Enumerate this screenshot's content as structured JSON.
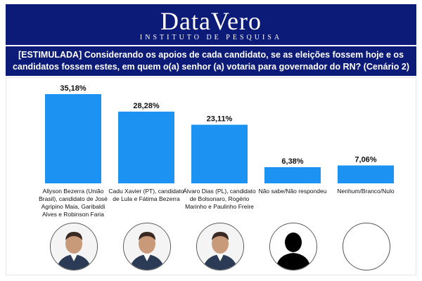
{
  "header": {
    "brand": "DataVero",
    "subtitle": "INSTITUTO DE PESQUISA",
    "question": "[ESTIMULADA] Considerando os apoios de cada candidato, se as eleições fossem hoje e os candidatos fossem estes, em quem o(a) senhor (a) votaria para governador do RN? (Cenário 2)"
  },
  "colors": {
    "banner": "#0c1a78",
    "bar": "#1c93f2"
  },
  "chart_data": {
    "type": "bar",
    "categories": [
      "Allyson Bezerra (União Brasil), candidato de José Agripino Maia, Garibaldi Alves e Robinson Faria",
      "Cadu Xavier (PT), candidato de Lula e Fátima Bezerra",
      "Álvaro Dias (PL), candidato de Bolsonaro, Rogério Marinho e Paulinho Freire",
      "Não sabe/Não respondeu",
      "Nenhum/Branco/Nulo"
    ],
    "values": [
      35.18,
      28.28,
      23.11,
      6.38,
      7.06
    ],
    "value_labels": [
      "35,18%",
      "28,28%",
      "23,11%",
      "6,38%",
      "7,06%"
    ],
    "ylim": [
      0,
      40
    ]
  },
  "photos": [
    "candidate-photo",
    "candidate-photo",
    "candidate-photo",
    "silhouette-icon",
    "empty-circle"
  ]
}
